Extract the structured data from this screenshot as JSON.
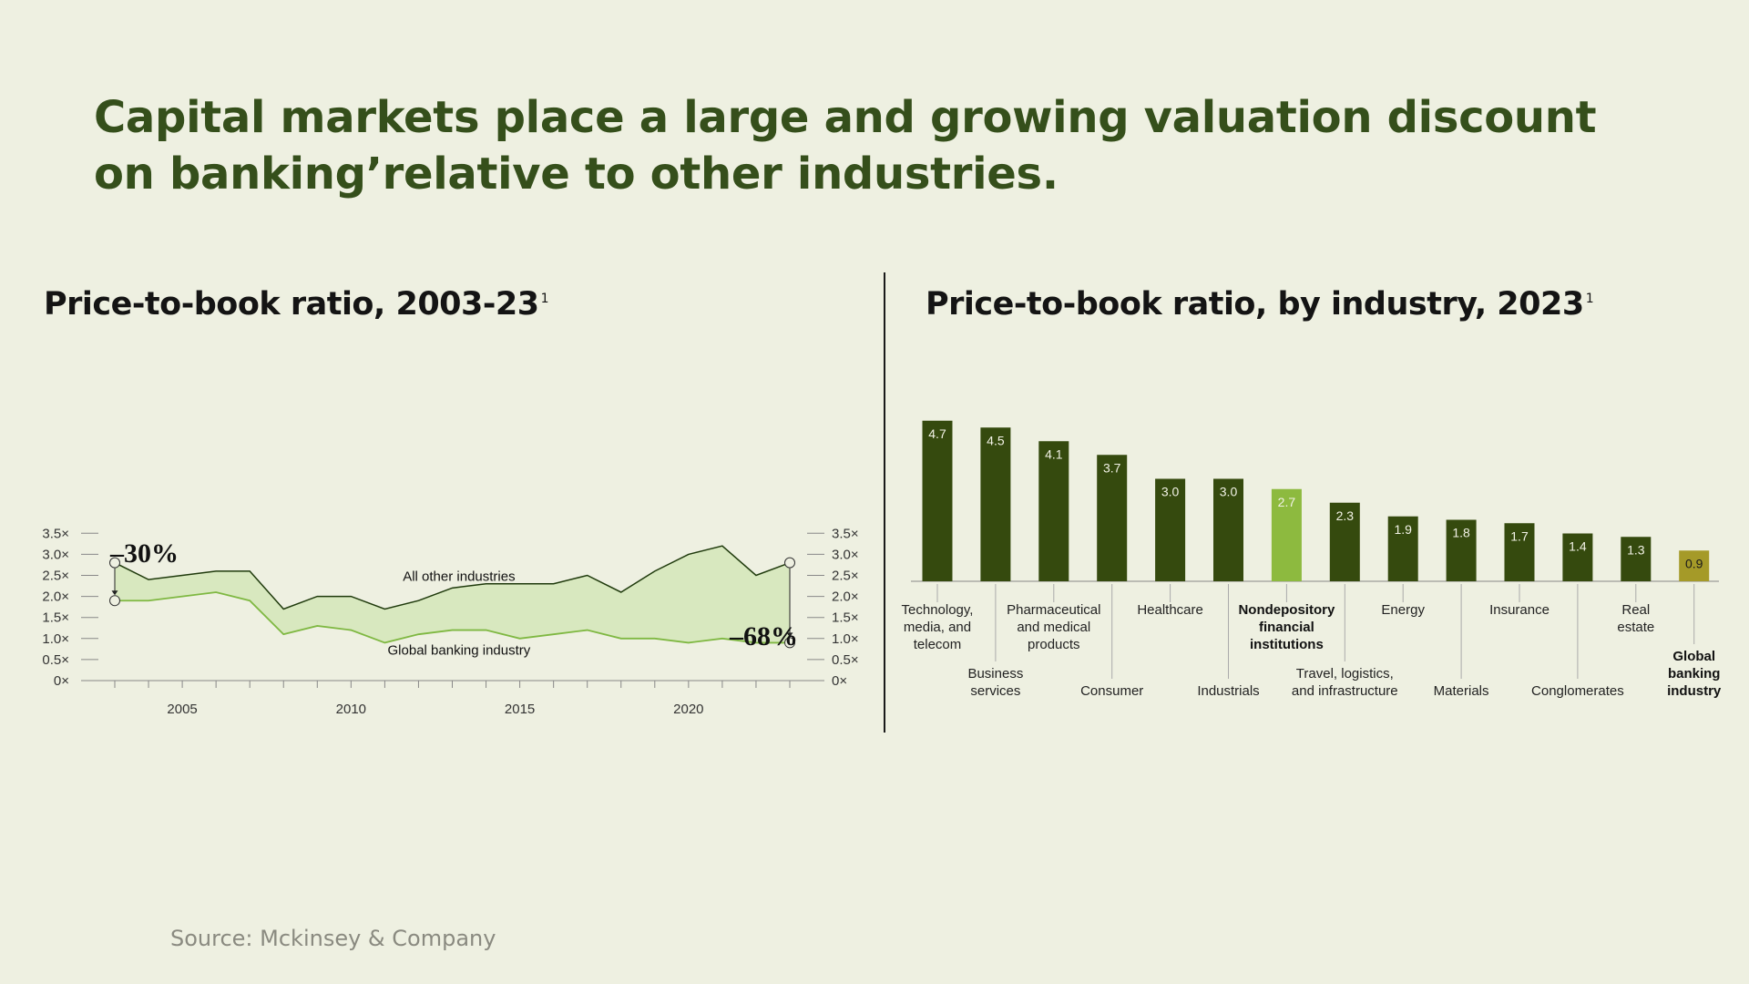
{
  "headline": {
    "line1": "Capital markets place a large and growing valuation discount",
    "line2": "on banking’relative to other industries."
  },
  "source": "Source: Mckinsey & Company",
  "colors": {
    "background": "#eef0e1",
    "headline": "#354f1b",
    "banking_line": "#7fb842",
    "other_line": "#1f3a0c",
    "area_fill": "#d8e8bf",
    "bar_dark": "#354a0e",
    "bar_highlight": "#8dba3f",
    "bar_banking": "#a59a28"
  },
  "chart_data": [
    {
      "type": "line",
      "title": "Price-to-book ratio, 2003-23",
      "title_footnote": "1",
      "x": [
        2003,
        2004,
        2005,
        2006,
        2007,
        2008,
        2009,
        2010,
        2011,
        2012,
        2013,
        2014,
        2015,
        2016,
        2017,
        2018,
        2019,
        2020,
        2021,
        2022,
        2023
      ],
      "series": [
        {
          "name": "All other industries",
          "values": [
            2.8,
            2.4,
            2.5,
            2.6,
            2.6,
            1.7,
            2.0,
            2.0,
            1.7,
            1.9,
            2.2,
            2.3,
            2.3,
            2.3,
            2.5,
            2.1,
            2.6,
            3.0,
            3.2,
            2.5,
            2.8
          ]
        },
        {
          "name": "Global banking industry",
          "values": [
            1.9,
            1.9,
            2.0,
            2.1,
            1.9,
            1.1,
            1.3,
            1.2,
            0.9,
            1.1,
            1.2,
            1.2,
            1.0,
            1.1,
            1.2,
            1.0,
            1.0,
            0.9,
            1.0,
            0.9,
            0.9
          ]
        }
      ],
      "ylim": [
        0,
        3.5
      ],
      "yticks": [
        0,
        0.5,
        1.0,
        1.5,
        2.0,
        2.5,
        3.0,
        3.5
      ],
      "ytick_labels": [
        "0×",
        "0.5×",
        "1.0×",
        "1.5×",
        "2.0×",
        "2.5×",
        "3.0×",
        "3.5×"
      ],
      "xticks": [
        2005,
        2010,
        2015,
        2020
      ],
      "xtick_labels": [
        "2005",
        "2010",
        "2015",
        "2020"
      ],
      "annotations": [
        {
          "text": "–30%",
          "x": 2003
        },
        {
          "text": "–68%",
          "x": 2023
        }
      ],
      "grid": false
    },
    {
      "type": "bar",
      "title": "Price-to-book ratio, by industry, 2023",
      "title_footnote": "1",
      "categories": [
        "Technology, media, and telecom",
        "Business services",
        "Pharmaceutical and medical products",
        "Consumer",
        "Healthcare",
        "Industrials",
        "Nondepository financial institutions",
        "Travel, logistics, and infrastructure",
        "Energy",
        "Materials",
        "Insurance",
        "Conglomerates",
        "Real estate",
        "Global banking industry"
      ],
      "category_lines": [
        [
          "Technology,",
          "media, and",
          "telecom"
        ],
        [
          "Business",
          "services"
        ],
        [
          "Pharmaceutical",
          "and medical",
          "products"
        ],
        [
          "Consumer"
        ],
        [
          "Healthcare"
        ],
        [
          "Industrials"
        ],
        [
          "Nondepository",
          "financial",
          "institutions"
        ],
        [
          "Travel, logistics,",
          "and infrastructure"
        ],
        [
          "Energy"
        ],
        [
          "Materials"
        ],
        [
          "Insurance"
        ],
        [
          "Conglomerates"
        ],
        [
          "Real",
          "estate"
        ],
        [
          "Global",
          "banking",
          "industry"
        ]
      ],
      "values": [
        4.7,
        4.5,
        4.1,
        3.7,
        3.0,
        3.0,
        2.7,
        2.3,
        1.9,
        1.8,
        1.7,
        1.4,
        1.3,
        0.9
      ],
      "value_labels": [
        "4.7",
        "4.5",
        "4.1",
        "3.7",
        "3.0",
        "3.0",
        "2.7",
        "2.3",
        "1.9",
        "1.8",
        "1.7",
        "1.4",
        "1.3",
        "0.9"
      ],
      "highlight": {
        "Nondepository financial institutions": "bar_highlight",
        "Global banking industry": "bar_banking"
      },
      "bold_categories": [
        "Nondepository financial institutions",
        "Global banking industry"
      ]
    }
  ]
}
